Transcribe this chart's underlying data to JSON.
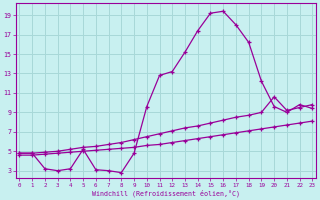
{
  "xlabel": "Windchill (Refroidissement éolien,°C)",
  "bg_color": "#c8f0f0",
  "grid_color": "#a8d8d8",
  "line_color": "#990099",
  "x_ticks": [
    0,
    1,
    2,
    3,
    4,
    5,
    6,
    7,
    8,
    9,
    10,
    11,
    12,
    13,
    14,
    15,
    16,
    17,
    18,
    19,
    20,
    21,
    22,
    23
  ],
  "y_ticks": [
    3,
    5,
    7,
    9,
    11,
    13,
    15,
    17,
    19
  ],
  "xlim": [
    -0.3,
    23.3
  ],
  "ylim": [
    2.2,
    20.2
  ],
  "line1_x": [
    0,
    1,
    2,
    3,
    4,
    5,
    6,
    7,
    8,
    9,
    10,
    11,
    12,
    13,
    14,
    15,
    16,
    17,
    18,
    19,
    20,
    21,
    22,
    23
  ],
  "line1_y": [
    4.8,
    4.8,
    3.2,
    3.0,
    3.2,
    5.2,
    3.1,
    3.0,
    2.8,
    4.8,
    9.6,
    12.8,
    13.2,
    15.2,
    17.4,
    19.2,
    19.4,
    18.0,
    16.2,
    12.2,
    9.6,
    9.0,
    9.8,
    9.4
  ],
  "line2_x": [
    0,
    1,
    2,
    3,
    4,
    5,
    6,
    7,
    8,
    9,
    10,
    11,
    12,
    13,
    14,
    15,
    16,
    17,
    18,
    19,
    20,
    21,
    22,
    23
  ],
  "line2_y": [
    4.8,
    4.8,
    4.9,
    5.0,
    5.2,
    5.4,
    5.5,
    5.7,
    5.9,
    6.2,
    6.5,
    6.8,
    7.1,
    7.4,
    7.6,
    7.9,
    8.2,
    8.5,
    8.7,
    9.0,
    10.6,
    9.2,
    9.5,
    9.8
  ],
  "line3_x": [
    0,
    1,
    2,
    3,
    4,
    5,
    6,
    7,
    8,
    9,
    10,
    11,
    12,
    13,
    14,
    15,
    16,
    17,
    18,
    19,
    20,
    21,
    22,
    23
  ],
  "line3_y": [
    4.6,
    4.6,
    4.7,
    4.8,
    4.9,
    5.0,
    5.1,
    5.2,
    5.3,
    5.4,
    5.6,
    5.7,
    5.9,
    6.1,
    6.3,
    6.5,
    6.7,
    6.9,
    7.1,
    7.3,
    7.5,
    7.7,
    7.9,
    8.1
  ]
}
